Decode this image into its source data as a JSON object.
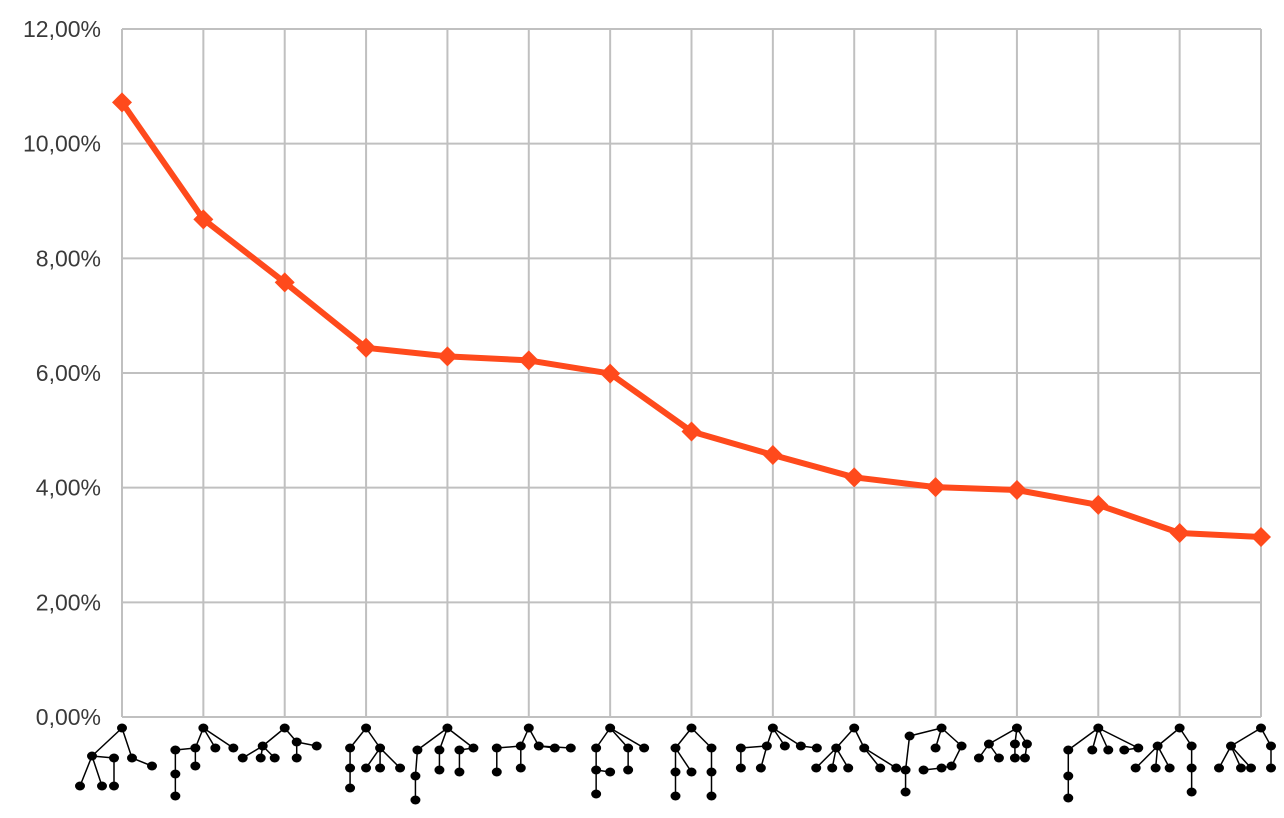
{
  "colors": {
    "line": "#ff4a1c",
    "grid": "#c0c0c0",
    "tree": "#000000"
  },
  "chart_data": {
    "type": "line",
    "title": "",
    "xlabel": "",
    "ylabel": "",
    "x_tick_style": "tree-glyph icons (no text labels)",
    "grid": true,
    "ylim": [
      0,
      12
    ],
    "y_ticks": [
      0,
      2,
      4,
      6,
      8,
      10,
      12
    ],
    "y_tick_labels": [
      "0,00%",
      "2,00%",
      "4,00%",
      "6,00%",
      "8,00%",
      "10,00%",
      "12,00%"
    ],
    "series": [
      {
        "values": [
          10.72,
          8.68,
          7.58,
          6.44,
          6.29,
          6.22,
          5.99,
          4.98,
          4.57,
          4.18,
          4.01,
          3.96,
          3.7,
          3.21,
          3.14
        ]
      }
    ]
  }
}
